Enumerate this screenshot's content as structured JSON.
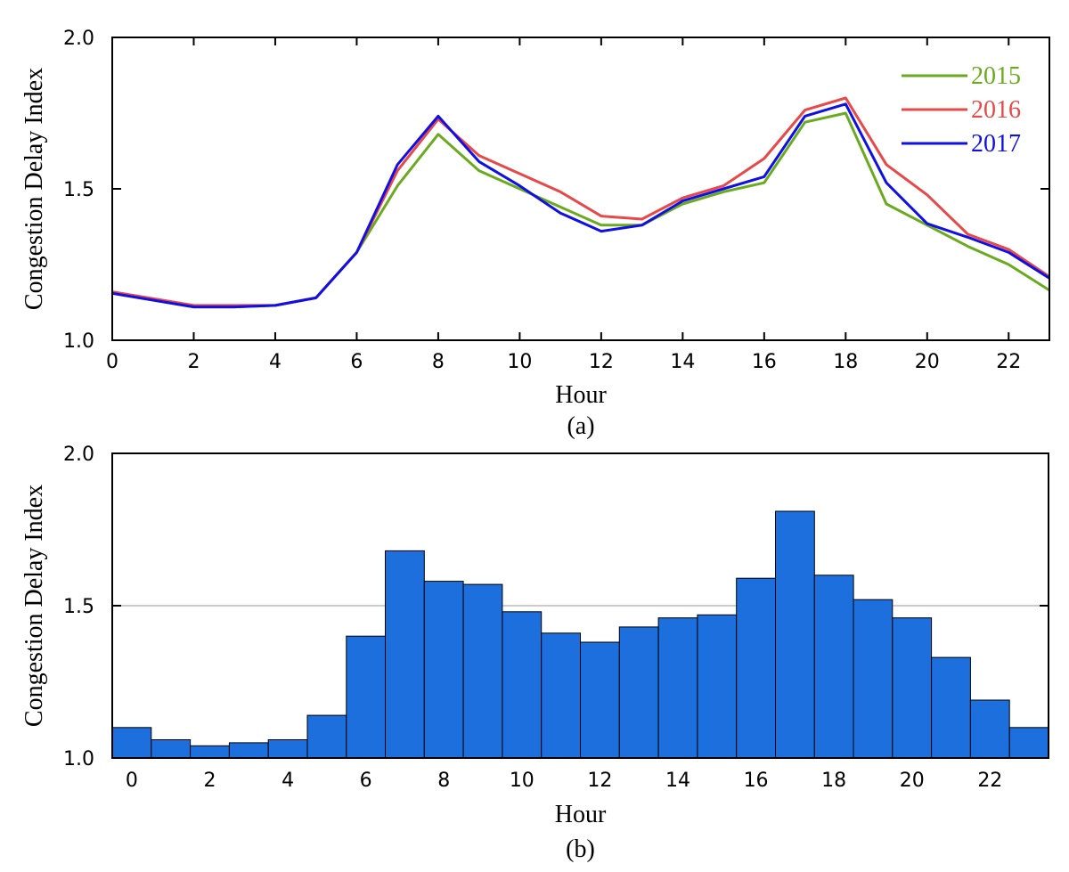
{
  "chart_data": [
    {
      "type": "line",
      "caption": "(a)",
      "xlabel": "Hour",
      "ylabel": "Congestion Delay Index",
      "xlim": [
        0,
        23
      ],
      "ylim": [
        1.0,
        2.0
      ],
      "xticks": [
        "0",
        "2",
        "4",
        "6",
        "8",
        "10",
        "12",
        "14",
        "16",
        "18",
        "20",
        "22"
      ],
      "yticks": [
        "1.0",
        "1.5",
        "2.0"
      ],
      "x": [
        0,
        2,
        3,
        4,
        5,
        6,
        7,
        8,
        9,
        10,
        11,
        12,
        13,
        14,
        15,
        16,
        17,
        18,
        19,
        20,
        21,
        22,
        23
      ],
      "series": [
        {
          "name": "2015",
          "color": "#6aaa1e",
          "values": [
            1.155,
            1.11,
            1.11,
            1.115,
            1.14,
            1.29,
            1.51,
            1.68,
            1.56,
            1.5,
            1.44,
            1.38,
            1.38,
            1.45,
            1.49,
            1.52,
            1.72,
            1.75,
            1.45,
            1.38,
            1.31,
            1.25,
            1.165
          ]
        },
        {
          "name": "2016",
          "color": "#e84848",
          "values": [
            1.16,
            1.115,
            1.115,
            1.115,
            1.14,
            1.29,
            1.56,
            1.73,
            1.61,
            1.55,
            1.49,
            1.41,
            1.4,
            1.47,
            1.51,
            1.6,
            1.76,
            1.8,
            1.58,
            1.48,
            1.35,
            1.3,
            1.21
          ]
        },
        {
          "name": "2017",
          "color": "#1010e6",
          "values": [
            1.155,
            1.11,
            1.11,
            1.115,
            1.14,
            1.29,
            1.58,
            1.74,
            1.59,
            1.51,
            1.42,
            1.36,
            1.38,
            1.46,
            1.5,
            1.54,
            1.74,
            1.78,
            1.52,
            1.385,
            1.34,
            1.29,
            1.205
          ]
        }
      ],
      "legend_position": "top-right"
    },
    {
      "type": "bar",
      "caption": "(b)",
      "xlabel": "Hour",
      "ylabel": "Congestion Delay Index",
      "ylim": [
        1.0,
        2.0
      ],
      "xticks": [
        "0",
        "2",
        "4",
        "6",
        "8",
        "10",
        "12",
        "14",
        "16",
        "18",
        "20",
        "22"
      ],
      "yticks": [
        "1.0",
        "1.5",
        "2.0"
      ],
      "reference_line": 1.5,
      "color": "#1c6fdc",
      "categories": [
        0,
        1,
        2,
        3,
        4,
        5,
        6,
        7,
        8,
        9,
        10,
        11,
        12,
        13,
        14,
        15,
        16,
        17,
        18,
        19,
        20,
        21,
        22,
        23
      ],
      "values": [
        1.1,
        1.06,
        1.04,
        1.05,
        1.06,
        1.14,
        1.4,
        1.68,
        1.58,
        1.57,
        1.48,
        1.41,
        1.38,
        1.43,
        1.46,
        1.47,
        1.59,
        1.81,
        1.6,
        1.52,
        1.46,
        1.33,
        1.19,
        1.1
      ]
    }
  ]
}
